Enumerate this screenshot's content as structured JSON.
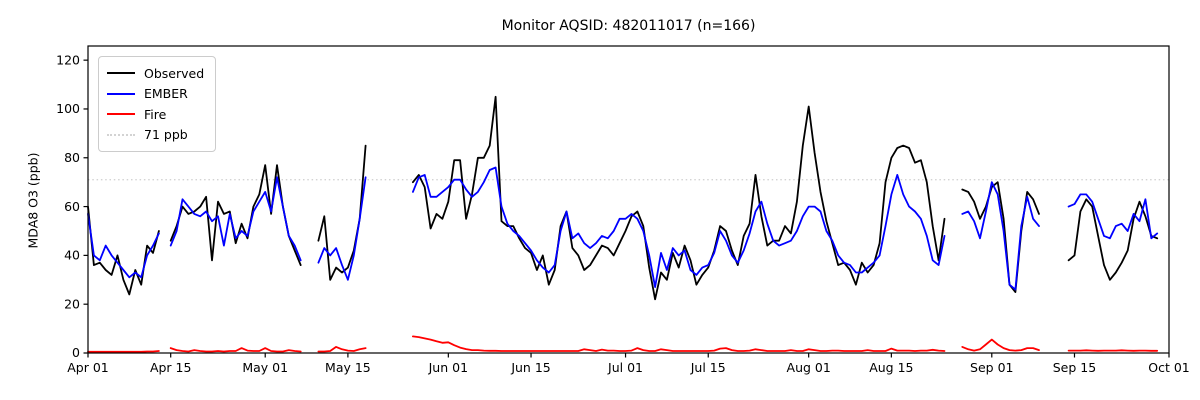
{
  "title": "Monitor AQSID: 482011017 (n=166)",
  "legend": {
    "items": [
      {
        "label": "Observed",
        "color": "#000000",
        "style": "solid"
      },
      {
        "label": "EMBER",
        "color": "#0000ff",
        "style": "solid"
      },
      {
        "label": "Fire",
        "color": "#ff0000",
        "style": "solid"
      },
      {
        "label": "71 ppb",
        "color": "#d3d3d3",
        "style": "dotted"
      }
    ]
  },
  "chart_data": {
    "type": "line",
    "title": "Monitor AQSID: 482011017 (n=166)",
    "xlabel": "",
    "ylabel": "MDA8 O3 (ppb)",
    "n_points": 166,
    "ylim": [
      0,
      125.8
    ],
    "yticks": [
      0,
      20,
      40,
      60,
      80,
      100,
      120
    ],
    "xticks": [
      {
        "day": 0,
        "label": "Apr 01"
      },
      {
        "day": 14,
        "label": "Apr 15"
      },
      {
        "day": 30,
        "label": "May 01"
      },
      {
        "day": 44,
        "label": "May 15"
      },
      {
        "day": 61,
        "label": "Jun 01"
      },
      {
        "day": 75,
        "label": "Jun 15"
      },
      {
        "day": 91,
        "label": "Jul 01"
      },
      {
        "day": 105,
        "label": "Jul 15"
      },
      {
        "day": 122,
        "label": "Aug 01"
      },
      {
        "day": 136,
        "label": "Aug 15"
      },
      {
        "day": 153,
        "label": "Sep 01"
      },
      {
        "day": 167,
        "label": "Sep 15"
      },
      {
        "day": 183,
        "label": "Oct 01"
      }
    ],
    "threshold": {
      "value": 71,
      "label": "71 ppb",
      "color": "#d3d3d3",
      "linestyle": "dotted"
    },
    "x_unit": "day (daily MDA8 values, gaps = missing days)",
    "x_start_date": "Apr 01",
    "x_end_date": "Sep 29",
    "months": [
      {
        "name": "Apr",
        "days": 30
      },
      {
        "name": "May",
        "days": 31
      },
      {
        "name": "Jun",
        "days": 30
      },
      {
        "name": "Jul",
        "days": 31
      },
      {
        "name": "Aug",
        "days": 31
      },
      {
        "name": "Sep",
        "days": 29
      }
    ],
    "series": [
      {
        "name": "Observed",
        "color": "#000000",
        "linewidth": 1.8,
        "values": [
          60,
          36,
          37,
          34,
          32,
          40,
          30,
          24,
          34,
          28,
          44,
          41,
          50,
          null,
          46,
          52,
          60,
          57,
          58,
          60,
          64,
          38,
          62,
          57,
          58,
          45,
          53,
          47,
          60,
          65,
          77,
          57,
          77,
          60,
          48,
          42,
          36,
          null,
          null,
          46,
          56,
          30,
          35,
          33,
          35,
          42,
          55,
          85,
          null,
          null,
          null,
          null,
          null,
          null,
          null,
          70,
          73,
          68,
          51,
          57,
          55,
          62,
          79,
          79,
          55,
          65,
          80,
          80,
          85,
          105,
          54,
          52,
          52,
          47,
          43,
          41,
          34,
          40,
          28,
          34,
          52,
          58,
          43,
          40,
          34,
          36,
          40,
          44,
          43,
          40,
          45,
          50,
          56,
          58,
          52,
          35,
          22,
          33,
          30,
          41,
          35,
          44,
          38,
          28,
          32,
          35,
          42,
          52,
          50,
          42,
          36,
          48,
          53,
          73,
          56,
          44,
          46,
          46,
          52,
          49,
          62,
          85,
          101,
          82,
          66,
          54,
          45,
          36,
          37,
          34,
          28,
          37,
          33,
          36,
          45,
          70,
          80,
          84,
          85,
          84,
          78,
          79,
          70,
          52,
          38,
          55,
          null,
          null,
          67,
          66,
          62,
          55,
          60,
          68,
          70,
          55,
          28,
          25,
          50,
          66,
          63,
          57,
          null,
          null,
          null,
          null,
          38,
          40,
          58,
          63,
          60,
          48,
          36,
          30,
          33,
          37,
          42,
          55,
          62,
          56,
          48,
          47
        ]
      },
      {
        "name": "EMBER",
        "color": "#0000ff",
        "linewidth": 1.8,
        "values": [
          57,
          40,
          38,
          44,
          40,
          37,
          34,
          31,
          33,
          31,
          40,
          44,
          49,
          null,
          44,
          50,
          63,
          60,
          57,
          56,
          58,
          54,
          56,
          44,
          57,
          47,
          50,
          48,
          58,
          62,
          66,
          58,
          72,
          60,
          48,
          44,
          38,
          null,
          null,
          37,
          43,
          40,
          43,
          36,
          30,
          40,
          55,
          72,
          null,
          null,
          null,
          null,
          null,
          null,
          null,
          66,
          72,
          73,
          64,
          64,
          66,
          68,
          71,
          71,
          67,
          64,
          66,
          70,
          75,
          76,
          60,
          53,
          50,
          48,
          45,
          42,
          38,
          35,
          33,
          36,
          50,
          58,
          47,
          49,
          45,
          43,
          45,
          48,
          47,
          50,
          55,
          55,
          57,
          55,
          50,
          40,
          27,
          41,
          34,
          43,
          40,
          42,
          34,
          32,
          35,
          36,
          41,
          50,
          46,
          40,
          37,
          42,
          49,
          58,
          62,
          53,
          46,
          44,
          45,
          46,
          50,
          56,
          60,
          60,
          58,
          50,
          46,
          40,
          37,
          36,
          33,
          33,
          35,
          37,
          40,
          52,
          65,
          73,
          65,
          60,
          58,
          55,
          48,
          38,
          36,
          48,
          null,
          null,
          57,
          58,
          54,
          47,
          58,
          70,
          65,
          50,
          28,
          26,
          52,
          64,
          55,
          52,
          null,
          null,
          null,
          null,
          60,
          61,
          65,
          65,
          62,
          55,
          48,
          47,
          52,
          53,
          50,
          57,
          54,
          63,
          47,
          49
        ]
      },
      {
        "name": "Fire",
        "color": "#ff0000",
        "linewidth": 1.8,
        "values": [
          0.5,
          0.5,
          0.5,
          0.5,
          0.5,
          0.5,
          0.5,
          0.5,
          0.5,
          0.5,
          0.6,
          0.6,
          0.8,
          null,
          2,
          1.2,
          0.8,
          0.6,
          1.2,
          0.8,
          0.6,
          0.6,
          0.8,
          0.6,
          0.8,
          0.8,
          2,
          1,
          0.8,
          0.8,
          2,
          0.8,
          0.6,
          0.6,
          1.2,
          0.8,
          0.6,
          null,
          null,
          0.6,
          0.6,
          0.8,
          2.5,
          1.5,
          1,
          0.8,
          1.5,
          2,
          null,
          null,
          null,
          null,
          null,
          null,
          null,
          6.8,
          6.5,
          6,
          5.5,
          4.8,
          4.2,
          4.4,
          3.2,
          2.2,
          1.6,
          1.2,
          1.2,
          1,
          0.9,
          0.9,
          0.8,
          0.8,
          0.8,
          0.8,
          0.8,
          0.8,
          0.8,
          0.8,
          0.8,
          0.8,
          0.8,
          0.8,
          0.8,
          0.8,
          1.5,
          1.2,
          0.8,
          1.4,
          1,
          1,
          0.8,
          0.8,
          1,
          2,
          1.2,
          0.8,
          0.8,
          1.5,
          1.2,
          0.8,
          0.8,
          0.8,
          0.8,
          0.8,
          0.8,
          0.8,
          1,
          1.8,
          2,
          1.2,
          0.8,
          0.8,
          1,
          1.5,
          1.2,
          0.8,
          0.8,
          0.8,
          0.8,
          1.2,
          0.8,
          0.8,
          1.5,
          1.2,
          0.8,
          0.8,
          1,
          1,
          0.8,
          0.8,
          0.8,
          0.8,
          1.2,
          0.8,
          0.8,
          0.8,
          1.8,
          1,
          1,
          1,
          0.8,
          1,
          1,
          1.3,
          1,
          0.8,
          null,
          null,
          2.5,
          1.5,
          1,
          1.5,
          3.5,
          5.5,
          3.5,
          2,
          1.2,
          1,
          1.2,
          2,
          2,
          1.2,
          null,
          null,
          null,
          null,
          1,
          1,
          1,
          1.1,
          1,
          0.9,
          1,
          1,
          1,
          1.1,
          1,
          0.9,
          1,
          1,
          0.9,
          0.9
        ]
      }
    ]
  }
}
